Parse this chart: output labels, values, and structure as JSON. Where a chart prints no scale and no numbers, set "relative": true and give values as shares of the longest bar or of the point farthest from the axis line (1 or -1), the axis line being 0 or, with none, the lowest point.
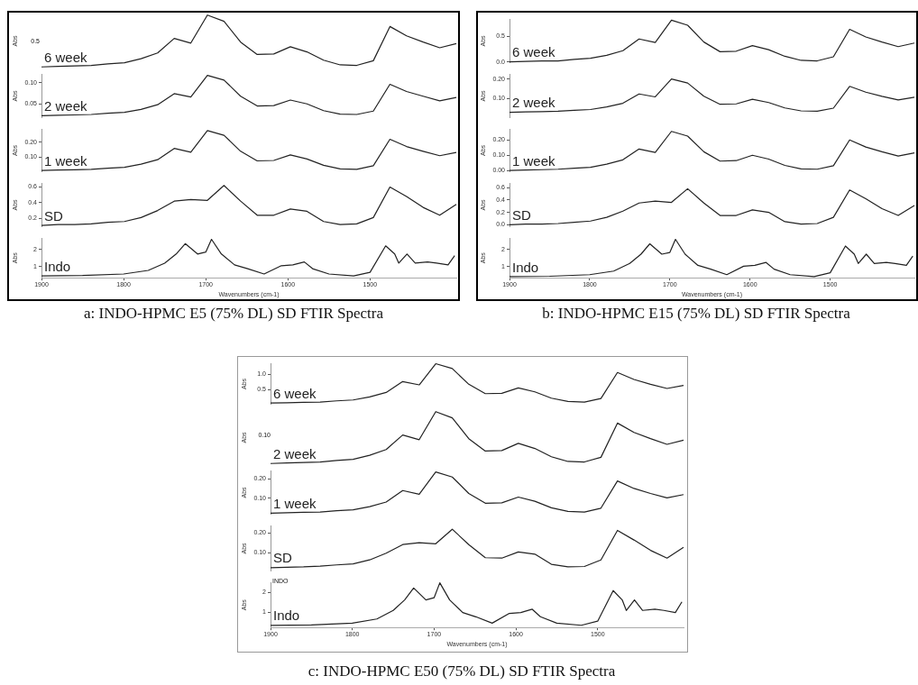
{
  "chart_data": [
    {
      "type": "line",
      "relative": true,
      "tick_labels": false,
      "ylabel": "Abs",
      "annotations": [
        "0.5"
      ],
      "categories": [
        null,
        null,
        null,
        null,
        null,
        null,
        null,
        null,
        null,
        null,
        null,
        null,
        null,
        null,
        null,
        null,
        null,
        null,
        null,
        null,
        null,
        null,
        null,
        null,
        null,
        null
      ],
      "series": [
        {
          "name": "6 week",
          "color": "#222222",
          "values": [
            0,
            0.01,
            0.02,
            0.03,
            0.06,
            0.08,
            0.16,
            0.27,
            0.55,
            0.46,
            1.0,
            0.88,
            0.48,
            0.24,
            0.25,
            0.39,
            0.29,
            0.13,
            0.04,
            0.03,
            0.12,
            0.78,
            0.6,
            0.48,
            0.37,
            0.45
          ]
        }
      ]
    },
    {
      "type": "line",
      "tick_labels": "y",
      "ylabel": "Abs",
      "ylim": [
        0.017,
        0.12
      ],
      "yticks": [
        {
          "value": 0.05,
          "label": "0.05"
        },
        {
          "value": 0.1,
          "label": "0.10"
        }
      ],
      "categories": [
        null,
        null,
        null,
        null,
        null,
        null,
        null,
        null,
        null,
        null,
        null,
        null,
        null,
        null,
        null,
        null,
        null,
        null,
        null,
        null,
        null,
        null,
        null,
        null,
        null,
        null
      ],
      "series": [
        {
          "name": "2 week",
          "color": "#222222",
          "values": [
            0.022,
            0.023,
            0.024,
            0.025,
            0.028,
            0.03,
            0.037,
            0.048,
            0.074,
            0.066,
            0.117,
            0.106,
            0.068,
            0.045,
            0.046,
            0.059,
            0.05,
            0.034,
            0.026,
            0.025,
            0.033,
            0.096,
            0.079,
            0.068,
            0.057,
            0.065
          ]
        }
      ]
    },
    {
      "type": "line",
      "tick_labels": "y",
      "ylabel": "Abs",
      "ylim": [
        0,
        0.29
      ],
      "yticks": [
        {
          "value": 0.1,
          "label": "0.10"
        },
        {
          "value": 0.2,
          "label": "0.20"
        }
      ],
      "categories": [
        null,
        null,
        null,
        null,
        null,
        null,
        null,
        null,
        null,
        null,
        null,
        null,
        null,
        null,
        null,
        null,
        null,
        null,
        null,
        null,
        null,
        null,
        null,
        null,
        null,
        null
      ],
      "series": [
        {
          "name": "1 week",
          "color": "#222222",
          "values": [
            0.01,
            0.013,
            0.015,
            0.018,
            0.026,
            0.032,
            0.053,
            0.083,
            0.159,
            0.134,
            0.28,
            0.248,
            0.14,
            0.075,
            0.078,
            0.115,
            0.088,
            0.045,
            0.021,
            0.018,
            0.042,
            0.221,
            0.172,
            0.14,
            0.11,
            0.132
          ]
        }
      ]
    },
    {
      "type": "line",
      "tick_labels": "y",
      "ylabel": "Abs",
      "ylim": [
        0.09,
        0.65
      ],
      "yticks": [
        0.2,
        0.4,
        0.6
      ],
      "categories": [
        null,
        null,
        null,
        null,
        null,
        null,
        null,
        null,
        null,
        null,
        null,
        null,
        null,
        null,
        null,
        null,
        null,
        null,
        null,
        null,
        null,
        null,
        null,
        null,
        null,
        null
      ],
      "series": [
        {
          "name": "SD",
          "color": "#222222",
          "values": [
            0.11,
            0.12,
            0.12,
            0.13,
            0.15,
            0.16,
            0.21,
            0.3,
            0.42,
            0.44,
            0.43,
            0.62,
            0.42,
            0.24,
            0.24,
            0.32,
            0.29,
            0.16,
            0.12,
            0.13,
            0.21,
            0.6,
            0.48,
            0.34,
            0.24,
            0.38
          ]
        }
      ]
    },
    {
      "type": "line",
      "ylabel": "Abs",
      "xlabel": "Wavenumbers (cm-1)",
      "xlim": [
        1900,
        1395
      ],
      "xticks": [
        1900,
        1800,
        1700,
        1600,
        1500
      ],
      "ylim": [
        0.35,
        2.65
      ],
      "yticks": [
        1,
        2
      ],
      "annotations": [
        "a: INDO-HPMC E5 (75% DL) SD FTIR Spectra"
      ],
      "x": [
        1900,
        1850,
        1800,
        1770,
        1750,
        1736,
        1725,
        1710,
        1700,
        1693,
        1681,
        1665,
        1649,
        1629,
        1608,
        1594,
        1580,
        1570,
        1550,
        1520,
        1500,
        1481,
        1470,
        1465,
        1455,
        1445,
        1430,
        1419,
        1405,
        1397
      ],
      "series": [
        {
          "name": "Indo",
          "color": "#222222",
          "values": [
            0.46,
            0.48,
            0.57,
            0.78,
            1.2,
            1.73,
            2.33,
            1.73,
            1.84,
            2.58,
            1.73,
            1.1,
            0.88,
            0.57,
            1.05,
            1.1,
            1.27,
            0.88,
            0.57,
            0.46,
            0.67,
            2.2,
            1.73,
            1.2,
            1.73,
            1.2,
            1.27,
            1.2,
            1.1,
            1.63
          ]
        }
      ]
    },
    {
      "type": "line",
      "tick_labels": "y",
      "ylabel": "Abs",
      "ylim": [
        -0.02,
        0.84
      ],
      "yticks": [
        {
          "value": 0,
          "label": "0.0"
        },
        0.5
      ],
      "categories": [
        null,
        null,
        null,
        null,
        null,
        null,
        null,
        null,
        null,
        null,
        null,
        null,
        null,
        null,
        null,
        null,
        null,
        null,
        null,
        null,
        null,
        null,
        null,
        null,
        null,
        null
      ],
      "series": [
        {
          "name": "6 week",
          "color": "#222222",
          "values": [
            0,
            0.01,
            0.02,
            0.02,
            0.05,
            0.07,
            0.13,
            0.22,
            0.45,
            0.38,
            0.82,
            0.72,
            0.39,
            0.2,
            0.21,
            0.32,
            0.24,
            0.11,
            0.03,
            0.02,
            0.1,
            0.64,
            0.49,
            0.39,
            0.3,
            0.37
          ]
        }
      ]
    },
    {
      "type": "line",
      "tick_labels": "y",
      "ylabel": "Abs",
      "ylim": [
        0,
        0.225
      ],
      "yticks": [
        {
          "value": 0.1,
          "label": "0.10"
        },
        {
          "value": 0.2,
          "label": "0.20"
        }
      ],
      "categories": [
        null,
        null,
        null,
        null,
        null,
        null,
        null,
        null,
        null,
        null,
        null,
        null,
        null,
        null,
        null,
        null,
        null,
        null,
        null,
        null,
        null,
        null,
        null,
        null,
        null,
        null
      ],
      "series": [
        {
          "name": "2 week",
          "color": "#222222",
          "values": [
            0.029,
            0.031,
            0.032,
            0.034,
            0.039,
            0.043,
            0.056,
            0.075,
            0.123,
            0.108,
            0.2,
            0.179,
            0.111,
            0.07,
            0.072,
            0.096,
            0.079,
            0.051,
            0.036,
            0.034,
            0.05,
            0.162,
            0.132,
            0.111,
            0.092,
            0.106
          ]
        }
      ]
    },
    {
      "type": "line",
      "tick_labels": "y",
      "ylabel": "Abs",
      "ylim": [
        -0.01,
        0.27
      ],
      "yticks": [
        {
          "value": 0,
          "label": "0.00"
        },
        {
          "value": 0.1,
          "label": "0.10"
        },
        {
          "value": 0.2,
          "label": "0.20"
        }
      ],
      "categories": [
        null,
        null,
        null,
        null,
        null,
        null,
        null,
        null,
        null,
        null,
        null,
        null,
        null,
        null,
        null,
        null,
        null,
        null,
        null,
        null,
        null,
        null,
        null,
        null,
        null,
        null
      ],
      "series": [
        {
          "name": "1 week",
          "color": "#222222",
          "values": [
            0,
            0.003,
            0.005,
            0.008,
            0.015,
            0.02,
            0.041,
            0.069,
            0.14,
            0.117,
            0.255,
            0.224,
            0.122,
            0.061,
            0.064,
            0.099,
            0.074,
            0.033,
            0.01,
            0.008,
            0.031,
            0.199,
            0.153,
            0.122,
            0.094,
            0.115
          ]
        }
      ]
    },
    {
      "type": "line",
      "tick_labels": "y",
      "ylabel": "Abs",
      "ylim": [
        -0.035,
        0.67
      ],
      "yticks": [
        {
          "value": 0,
          "label": "0.0"
        },
        0.2,
        0.4,
        0.6
      ],
      "categories": [
        null,
        null,
        null,
        null,
        null,
        null,
        null,
        null,
        null,
        null,
        null,
        null,
        null,
        null,
        null,
        null,
        null,
        null,
        null,
        null,
        null,
        null,
        null,
        null,
        null,
        null
      ],
      "series": [
        {
          "name": "SD",
          "color": "#222222",
          "values": [
            0,
            0.01,
            0.01,
            0.02,
            0.04,
            0.06,
            0.12,
            0.22,
            0.35,
            0.38,
            0.36,
            0.58,
            0.35,
            0.15,
            0.15,
            0.24,
            0.2,
            0.05,
            0.01,
            0.02,
            0.12,
            0.56,
            0.42,
            0.26,
            0.15,
            0.31
          ]
        }
      ]
    },
    {
      "type": "line",
      "ylabel": "Abs",
      "xlabel": "Wavenumbers (cm-1)",
      "xlim": [
        1900,
        1395
      ],
      "xticks": [
        1900,
        1800,
        1700,
        1600,
        1500
      ],
      "ylim": [
        0.35,
        2.65
      ],
      "yticks": [
        1,
        2
      ],
      "annotations": [
        "b: INDO-HPMC E15 (75% DL) SD FTIR Spectra"
      ],
      "x": [
        1900,
        1850,
        1800,
        1770,
        1750,
        1736,
        1725,
        1710,
        1700,
        1693,
        1681,
        1665,
        1649,
        1629,
        1608,
        1594,
        1580,
        1570,
        1550,
        1520,
        1500,
        1481,
        1470,
        1465,
        1455,
        1445,
        1430,
        1419,
        1405,
        1397
      ],
      "series": [
        {
          "name": "Indo",
          "color": "#222222",
          "values": [
            0.42,
            0.44,
            0.53,
            0.74,
            1.18,
            1.72,
            2.32,
            1.72,
            1.82,
            2.58,
            1.72,
            1.07,
            0.85,
            0.53,
            1.02,
            1.07,
            1.24,
            0.85,
            0.53,
            0.42,
            0.64,
            2.19,
            1.72,
            1.18,
            1.72,
            1.18,
            1.24,
            1.18,
            1.07,
            1.61
          ]
        }
      ]
    },
    {
      "type": "line",
      "tick_labels": "y",
      "ylabel": "Abs",
      "ylim": [
        0,
        1.36
      ],
      "yticks": [
        0.5,
        {
          "value": 1,
          "label": "1.0"
        }
      ],
      "categories": [
        null,
        null,
        null,
        null,
        null,
        null,
        null,
        null,
        null,
        null,
        null,
        null,
        null,
        null,
        null,
        null,
        null,
        null,
        null,
        null,
        null,
        null,
        null,
        null,
        null,
        null
      ],
      "series": [
        {
          "name": "6 week",
          "color": "#222222",
          "values": [
            0.05,
            0.06,
            0.07,
            0.08,
            0.12,
            0.15,
            0.25,
            0.4,
            0.76,
            0.65,
            1.35,
            1.19,
            0.67,
            0.36,
            0.37,
            0.55,
            0.42,
            0.21,
            0.1,
            0.08,
            0.2,
            1.06,
            0.83,
            0.67,
            0.53,
            0.63
          ]
        }
      ]
    },
    {
      "type": "line",
      "relative": true,
      "tick_labels": false,
      "ylabel": "Abs",
      "annotations": [
        "0.10"
      ],
      "categories": [
        null,
        null,
        null,
        null,
        null,
        null,
        null,
        null,
        null,
        null,
        null,
        null,
        null,
        null,
        null,
        null,
        null,
        null,
        null,
        null,
        null,
        null,
        null,
        null,
        null,
        null
      ],
      "series": [
        {
          "name": "2 week",
          "color": "#222222",
          "values": [
            0,
            0.01,
            0.02,
            0.03,
            0.06,
            0.08,
            0.16,
            0.27,
            0.55,
            0.46,
            1.0,
            0.88,
            0.48,
            0.24,
            0.25,
            0.39,
            0.29,
            0.13,
            0.04,
            0.03,
            0.12,
            0.78,
            0.6,
            0.48,
            0.37,
            0.45
          ]
        }
      ]
    },
    {
      "type": "line",
      "tick_labels": "y",
      "ylabel": "Abs",
      "ylim": [
        0.015,
        0.244
      ],
      "yticks": [
        {
          "value": 0.1,
          "label": "0.10"
        },
        {
          "value": 0.2,
          "label": "0.20"
        }
      ],
      "categories": [
        null,
        null,
        null,
        null,
        null,
        null,
        null,
        null,
        null,
        null,
        null,
        null,
        null,
        null,
        null,
        null,
        null,
        null,
        null,
        null,
        null,
        null,
        null,
        null,
        null,
        null
      ],
      "series": [
        {
          "name": "1 week",
          "color": "#222222",
          "values": [
            0.022,
            0.024,
            0.026,
            0.028,
            0.035,
            0.039,
            0.056,
            0.08,
            0.14,
            0.121,
            0.237,
            0.211,
            0.125,
            0.074,
            0.076,
            0.106,
            0.084,
            0.05,
            0.031,
            0.028,
            0.048,
            0.19,
            0.151,
            0.125,
            0.102,
            0.119
          ]
        }
      ]
    },
    {
      "type": "line",
      "tick_labels": "y",
      "ylabel": "Abs",
      "ylim": [
        0.007,
        0.236
      ],
      "yticks": [
        {
          "value": 0.1,
          "label": "0.10"
        },
        {
          "value": 0.2,
          "label": "0.20"
        }
      ],
      "categories": [
        null,
        null,
        null,
        null,
        null,
        null,
        null,
        null,
        null,
        null,
        null,
        null,
        null,
        null,
        null,
        null,
        null,
        null,
        null,
        null,
        null,
        null,
        null,
        null,
        null,
        null
      ],
      "series": [
        {
          "name": "SD",
          "color": "#222222",
          "values": [
            0.025,
            0.027,
            0.029,
            0.033,
            0.039,
            0.044,
            0.064,
            0.098,
            0.141,
            0.15,
            0.145,
            0.218,
            0.141,
            0.075,
            0.073,
            0.104,
            0.093,
            0.042,
            0.029,
            0.031,
            0.064,
            0.212,
            0.164,
            0.112,
            0.073,
            0.127
          ]
        }
      ]
    },
    {
      "type": "line",
      "ylabel": "Abs",
      "xlabel": "Wavenumbers (cm-1)",
      "xlim": [
        1900,
        1395
      ],
      "xticks": [
        1900,
        1800,
        1700,
        1600,
        1500
      ],
      "ylim": [
        0.23,
        2.5
      ],
      "yticks": [
        1,
        2
      ],
      "annotations": [
        "c: INDO-HPMC E50 (75% DL) SD FTIR Spectra",
        "INDO"
      ],
      "x": [
        1900,
        1850,
        1800,
        1770,
        1750,
        1736,
        1725,
        1710,
        1700,
        1693,
        1681,
        1665,
        1649,
        1629,
        1608,
        1594,
        1580,
        1570,
        1550,
        1520,
        1500,
        1481,
        1470,
        1465,
        1455,
        1445,
        1430,
        1419,
        1405,
        1397
      ],
      "series": [
        {
          "name": "Indo",
          "color": "#222222",
          "values": [
            0.34,
            0.36,
            0.45,
            0.66,
            1.09,
            1.62,
            2.22,
            1.62,
            1.73,
            2.48,
            1.62,
            0.98,
            0.77,
            0.45,
            0.94,
            0.98,
            1.15,
            0.77,
            0.45,
            0.34,
            0.55,
            2.09,
            1.62,
            1.09,
            1.62,
            1.09,
            1.15,
            1.09,
            0.98,
            1.52
          ]
        }
      ]
    }
  ]
}
